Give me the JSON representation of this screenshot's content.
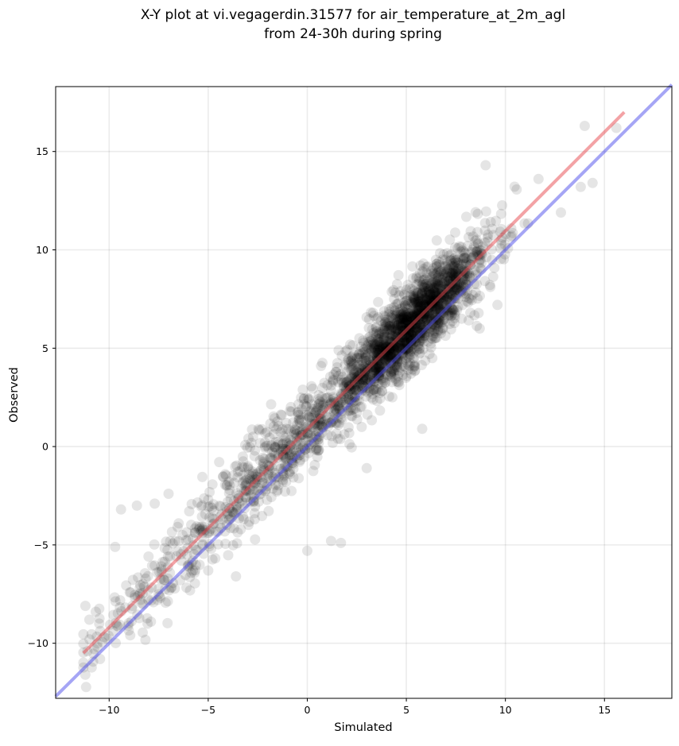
{
  "chart_data": {
    "type": "scatter",
    "title": "X-Y plot at vi.vegagerdin.31577 for air_temperature_at_2m_agl",
    "subtitle": "from 24-30h during spring",
    "xlabel": "Simulated",
    "ylabel": "Observed",
    "xlim": [
      -12.7,
      18.4
    ],
    "ylim": [
      -12.8,
      18.3
    ],
    "x_ticks": [
      -10,
      -5,
      0,
      5,
      10,
      15
    ],
    "y_ticks": [
      -10,
      -5,
      0,
      5,
      10,
      15
    ],
    "x_tick_labels": [
      "−10",
      "−5",
      "0",
      "5",
      "10",
      "15"
    ],
    "y_tick_labels": [
      "−10",
      "−5",
      "0",
      "5",
      "10",
      "15"
    ],
    "grid": true,
    "marker_color": "#000000",
    "marker_opacity": 0.1,
    "point_count": 2500,
    "points_sample": [
      {
        "x": -11.2,
        "y": -8.1
      },
      {
        "x": -11.0,
        "y": -8.8
      },
      {
        "x": -10.5,
        "y": -9.0
      },
      {
        "x": -9.7,
        "y": -5.1
      },
      {
        "x": -9.4,
        "y": -3.2
      },
      {
        "x": -8.6,
        "y": -3.0
      },
      {
        "x": -7.7,
        "y": -2.9
      },
      {
        "x": -7.0,
        "y": -2.4
      },
      {
        "x": -5.0,
        "y": -6.3
      },
      {
        "x": -3.6,
        "y": -6.6
      },
      {
        "x": 0.0,
        "y": -5.3
      },
      {
        "x": 1.2,
        "y": -4.8
      },
      {
        "x": 1.7,
        "y": -4.9
      },
      {
        "x": 3.0,
        "y": -1.1
      },
      {
        "x": 5.8,
        "y": 0.9
      },
      {
        "x": 8.7,
        "y": 6.0
      },
      {
        "x": 9.6,
        "y": 7.2
      },
      {
        "x": 9.0,
        "y": 14.3
      },
      {
        "x": 12.8,
        "y": 11.9
      },
      {
        "x": 14.0,
        "y": 16.3
      },
      {
        "x": 15.6,
        "y": 16.2
      },
      {
        "x": 13.8,
        "y": 13.2
      },
      {
        "x": 14.4,
        "y": 13.4
      }
    ],
    "regression_line": {
      "color": "#e8454b",
      "x": [
        -11.3,
        16.0
      ],
      "y": [
        -10.5,
        17.0
      ]
    },
    "identity_line": {
      "color": "#4c4cec",
      "x": [
        -12.7,
        18.4
      ],
      "y": [
        -12.7,
        18.4
      ]
    }
  }
}
